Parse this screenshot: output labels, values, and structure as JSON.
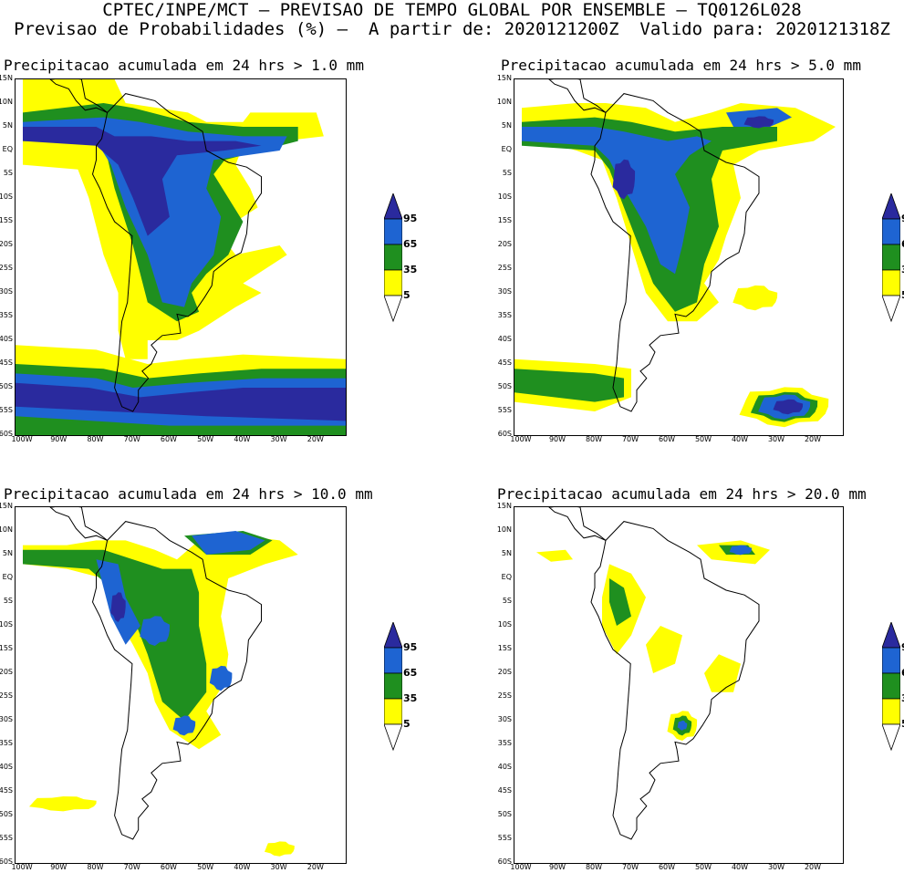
{
  "header": {
    "line1": "CPTEC/INPE/MCT — PREVISAO DE TEMPO GLOBAL POR ENSEMBLE — TQ0126L028",
    "line2": "Previsao de Probabilidades (%) —  A partir de: 2020121200Z  Valido para: 2020121318Z"
  },
  "axes": {
    "lat_labels": [
      "15N",
      "10N",
      "5N",
      "EQ",
      "5S",
      "10S",
      "15S",
      "20S",
      "25S",
      "30S",
      "35S",
      "40S",
      "45S",
      "50S",
      "55S",
      "60S"
    ],
    "lon_labels": [
      "100W",
      "90W",
      "80W",
      "70W",
      "60W",
      "50W",
      "40W",
      "30W",
      "20W"
    ]
  },
  "colorbar": {
    "labels": [
      "95",
      "65",
      "35",
      "5"
    ],
    "colors": {
      "c95": "#2a2a9e",
      "c65": "#1e64d2",
      "c35": "#1f8f1f",
      "c5": "#ffff00",
      "low": "#ffffff"
    }
  },
  "panels": [
    {
      "title": "Precipitacao acumulada em 24 hrs > 1.0 mm"
    },
    {
      "title": "Precipitacao acumulada em 24 hrs > 5.0 mm"
    },
    {
      "title": "Precipitacao acumulada em 24 hrs > 10.0 mm"
    },
    {
      "title": "Precipitacao acumulada em 24 hrs > 20.0 mm"
    }
  ]
}
